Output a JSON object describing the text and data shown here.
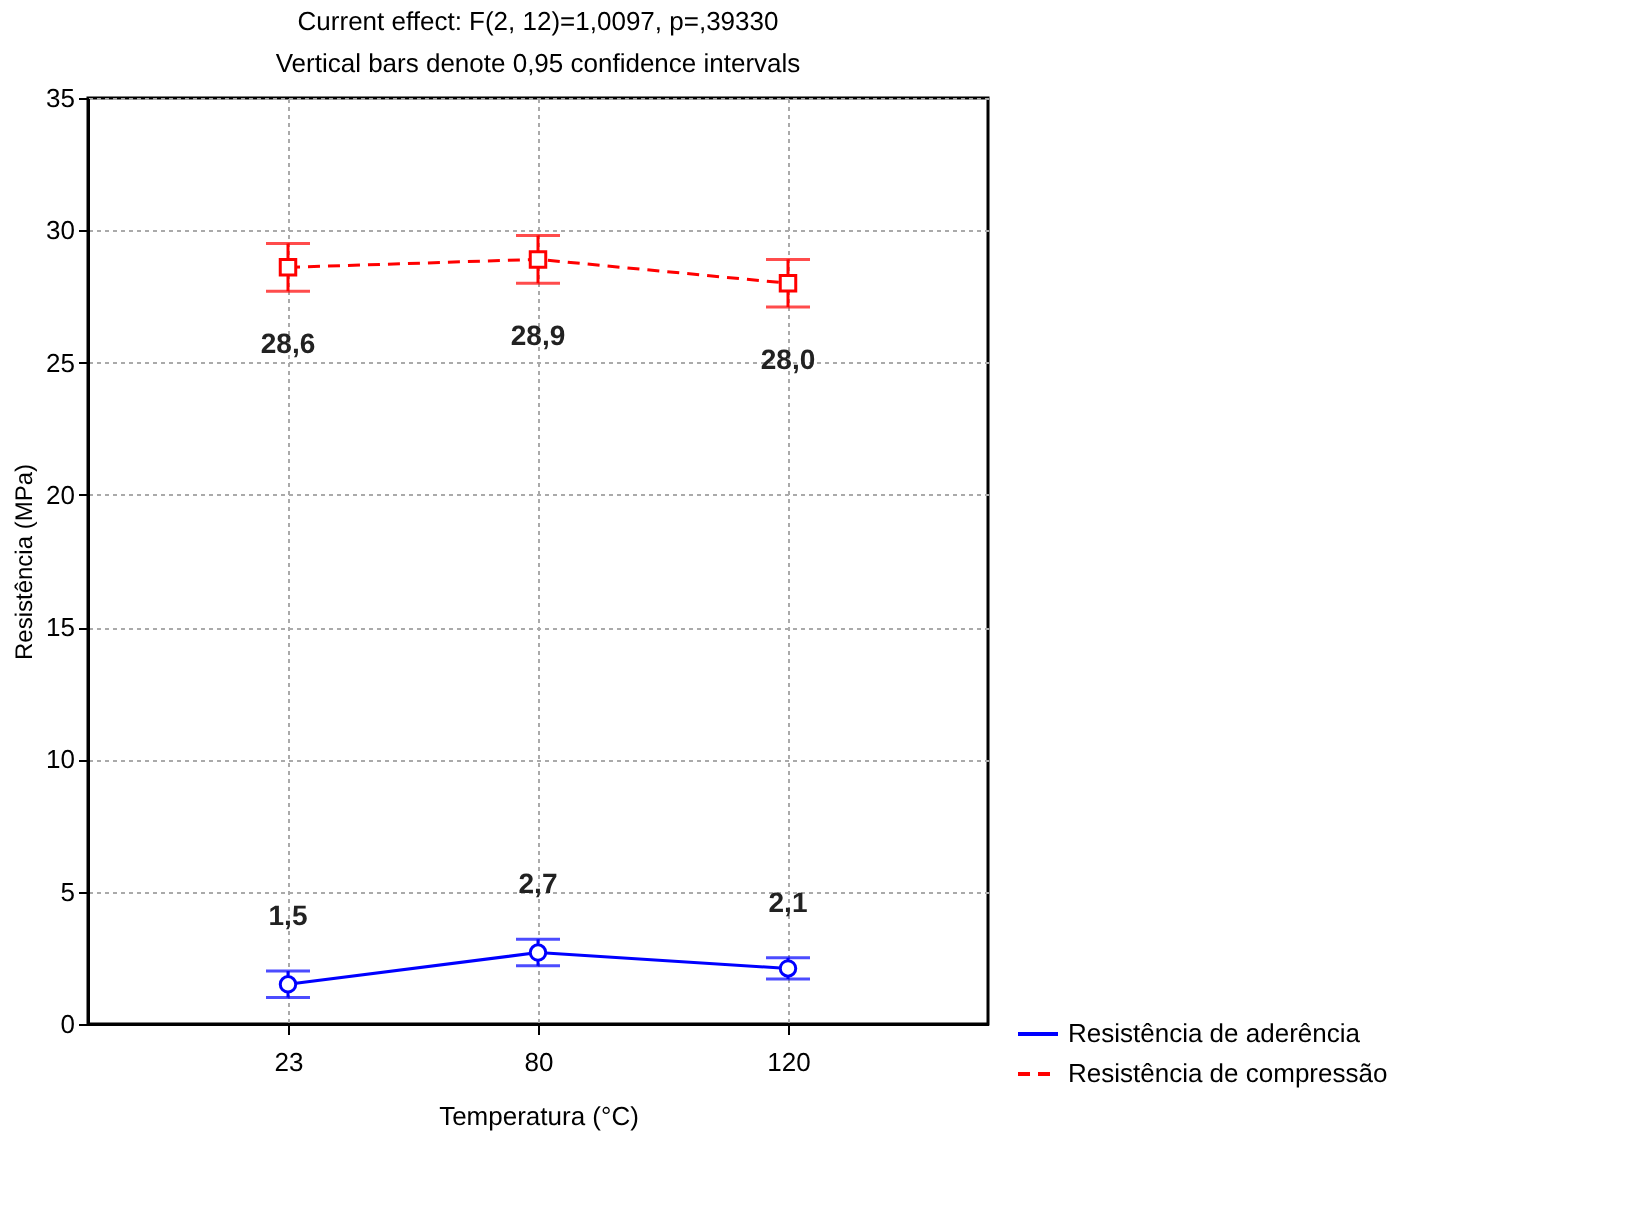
{
  "chart_data": {
    "type": "line",
    "title": "Current effect: F(2, 12)=1,0097, p=,39330",
    "subtitle": "Vertical bars denote 0,95 confidence intervals",
    "xlabel": "Temperatura (°C)",
    "ylabel": "Resistência (MPa)",
    "categories": [
      "23",
      "80",
      "120"
    ],
    "series": [
      {
        "name": "Resistência de aderência",
        "color": "#0000ff",
        "values": [
          1.5,
          2.7,
          2.1
        ],
        "errors": [
          0.5,
          0.5,
          0.4
        ],
        "value_labels": [
          "1,5",
          "2,7",
          "2,1"
        ],
        "marker": "circle",
        "line_style": "solid"
      },
      {
        "name": "Resistência de compressão",
        "color": "#ff0000",
        "values": [
          28.6,
          28.9,
          28.0
        ],
        "errors": [
          0.9,
          0.9,
          0.9
        ],
        "value_labels": [
          "28,6",
          "28,9",
          "28,0"
        ],
        "marker": "square",
        "line_style": "dashed"
      }
    ],
    "ylim": [
      0,
      35
    ],
    "yticks": [
      0,
      5,
      10,
      15,
      20,
      25,
      30,
      35
    ],
    "grid": true,
    "legend": "bottom right"
  }
}
